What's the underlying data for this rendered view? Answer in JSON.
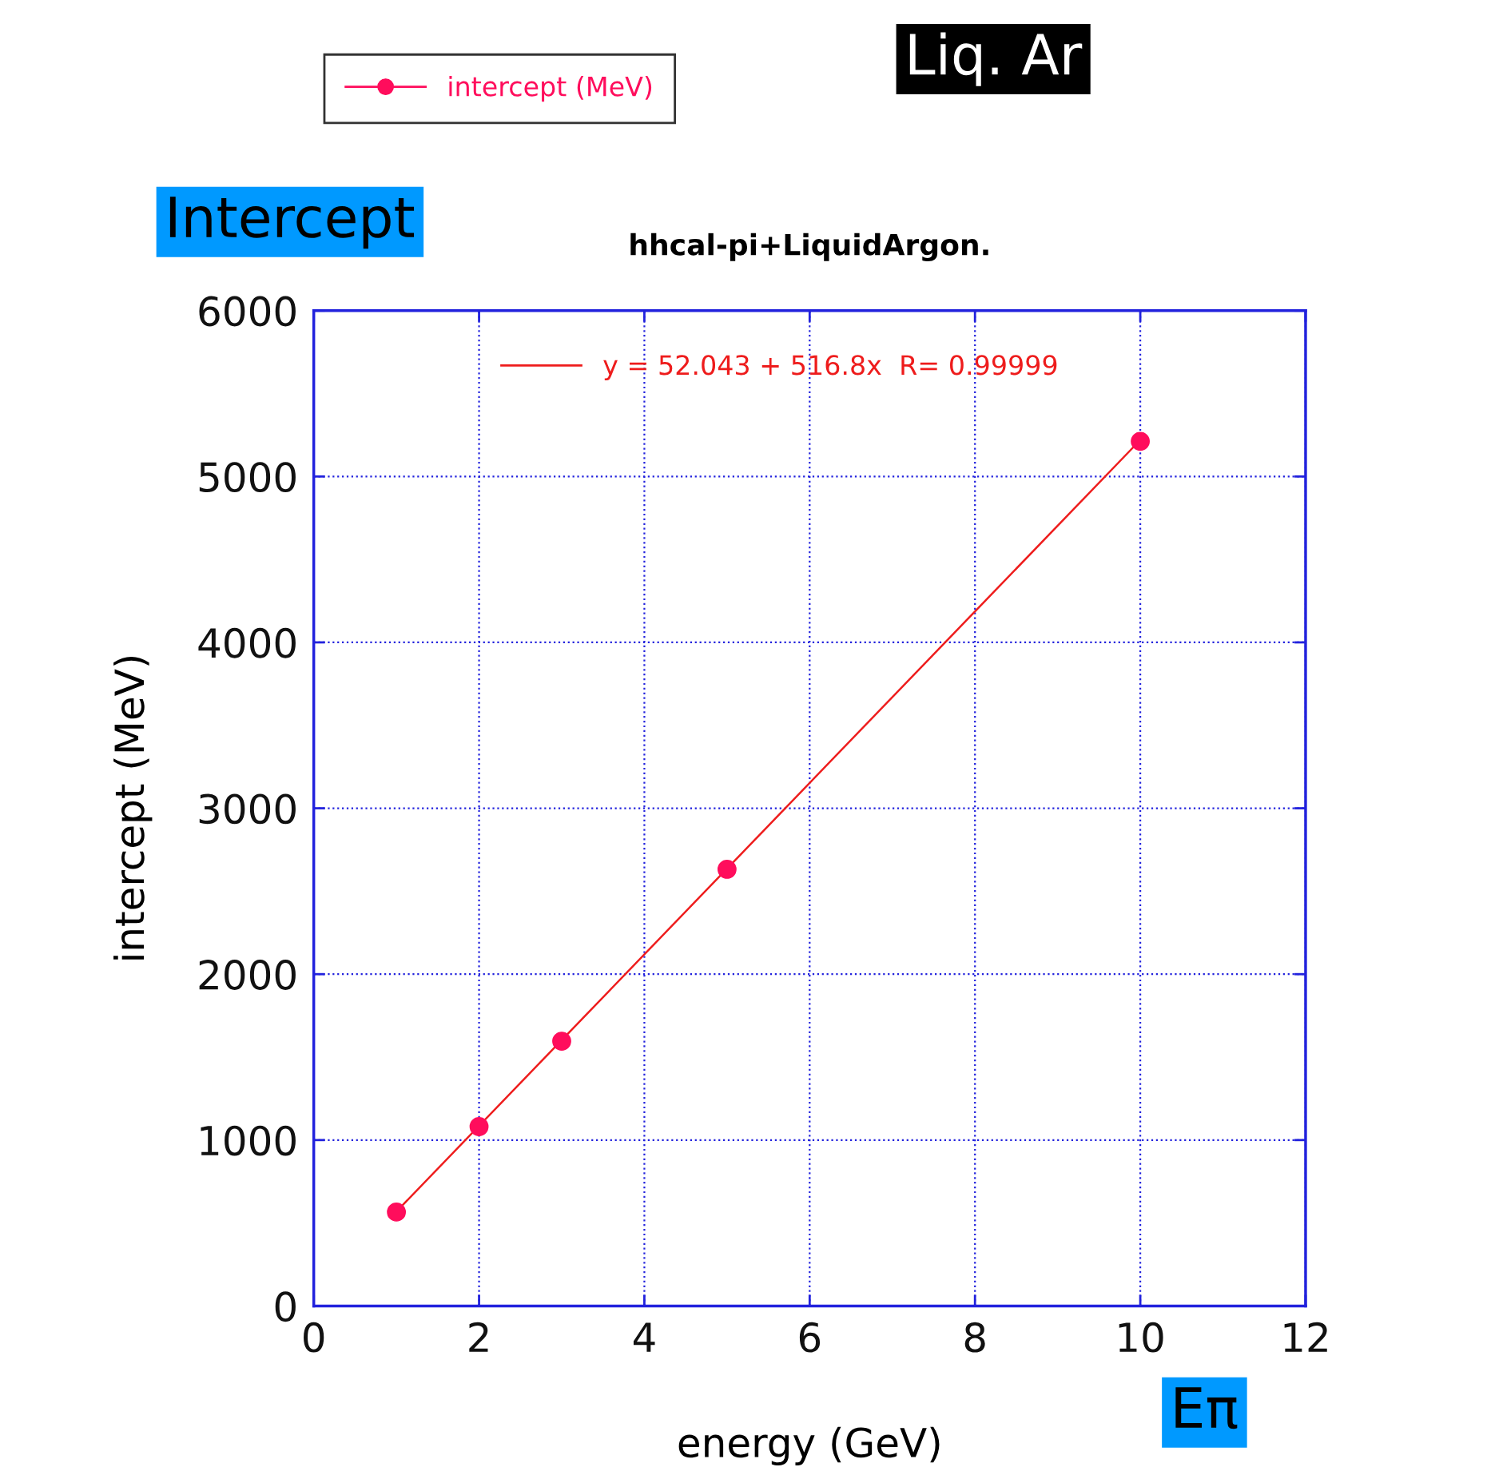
{
  "chart_data": {
    "type": "scatter",
    "title": "hhcal-pi+LiquidArgon.",
    "xlabel": "energy (GeV)",
    "ylabel": "intercept (MeV)",
    "x": [
      1,
      2,
      3,
      5,
      10
    ],
    "series": [
      {
        "name": "intercept (MeV)",
        "color": "#ff0d5c",
        "marker": "circle",
        "values": [
          566,
          1081,
          1596,
          2632,
          5212
        ]
      },
      {
        "name": "y = 52.043 + 516.8x  R= 0.99999",
        "type": "line",
        "marker": "none",
        "color": "#ee1c1c",
        "x": [
          1,
          10
        ],
        "values": [
          569,
          5220
        ]
      }
    ],
    "xlim": [
      0,
      12
    ],
    "xticks": [
      0,
      2,
      4,
      6,
      8,
      10,
      12
    ],
    "ylim": [
      0,
      6000
    ],
    "yticks": [
      0,
      1000,
      2000,
      3000,
      4000,
      5000,
      6000
    ],
    "grid": true,
    "legend": "top",
    "annotations": [
      "Liq. Ar",
      "Intercept",
      "Eπ"
    ]
  }
}
